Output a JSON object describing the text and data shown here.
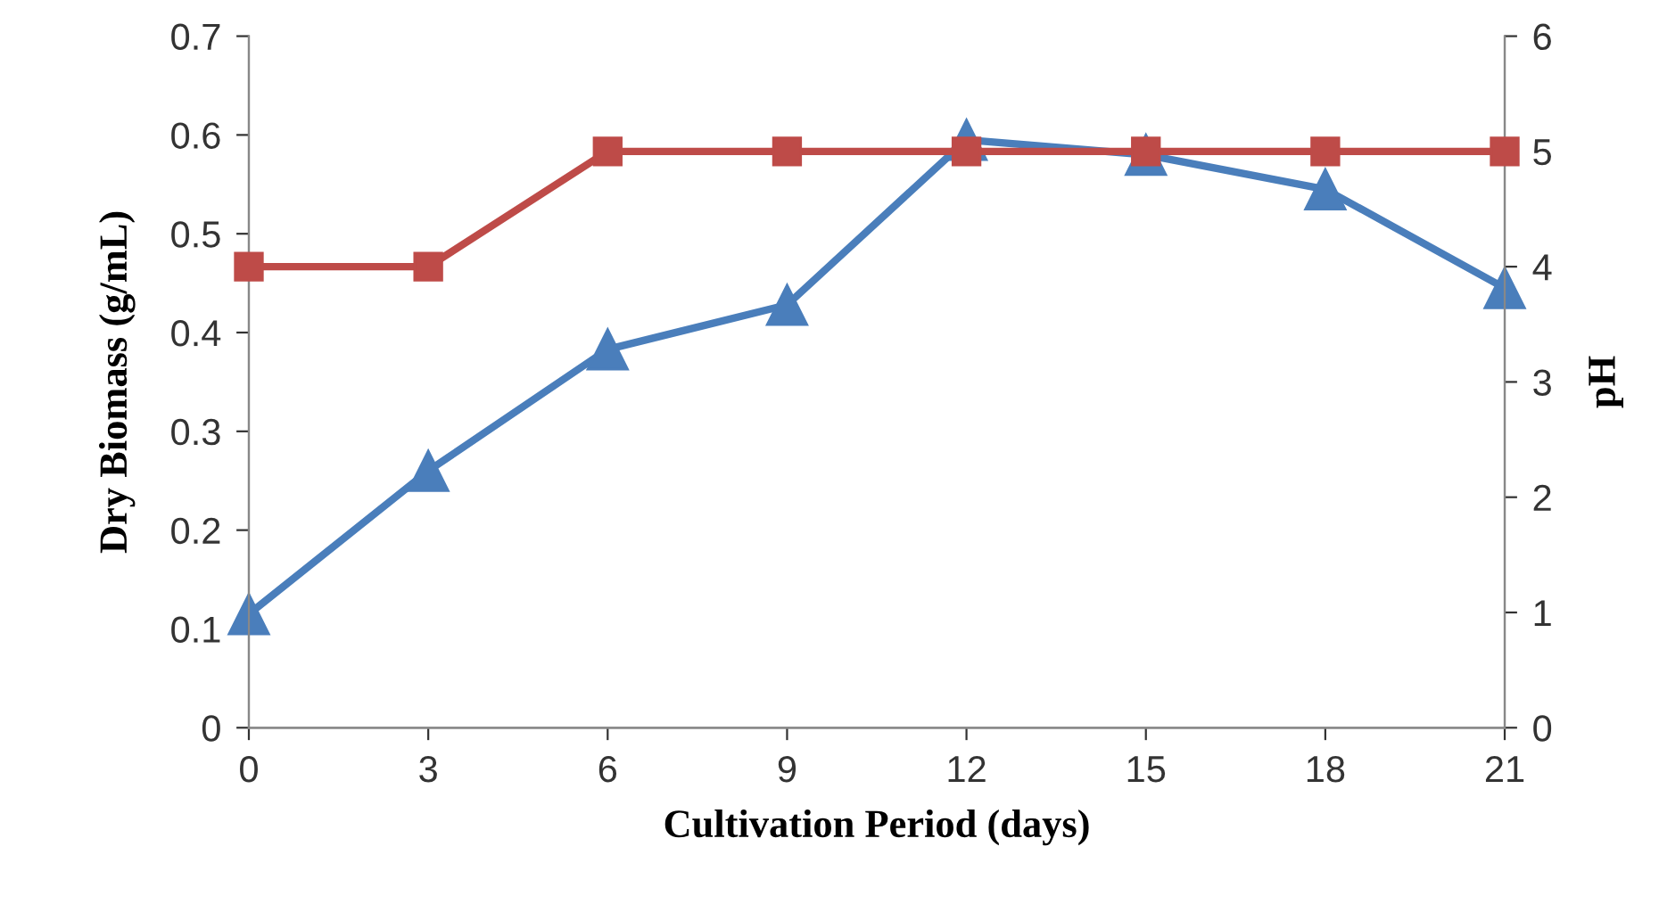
{
  "chart_data": {
    "type": "line",
    "xlabel": "Cultivation Period (days)",
    "ylabel": "Dry Biomass (g/mL)",
    "y2label": "pH",
    "x": [
      0,
      3,
      6,
      9,
      12,
      15,
      18,
      21
    ],
    "series": [
      {
        "color": "#4a7ebb",
        "marker": "triangle",
        "values": [
          0.115,
          0.26,
          0.383,
          0.428,
          0.595,
          0.58,
          0.545,
          0.445
        ]
      },
      {
        "color": "#be4b48",
        "marker": "square",
        "axis": "y2",
        "values": [
          4,
          4,
          5,
          5,
          5,
          5,
          5,
          5
        ]
      }
    ],
    "xlim": [
      0,
      21
    ],
    "xticks": [
      0,
      3,
      6,
      9,
      12,
      15,
      18,
      21
    ],
    "ylim": [
      0,
      0.7
    ],
    "yticks": [
      0,
      0.1,
      0.2,
      0.3,
      0.4,
      0.5,
      0.6,
      0.7
    ],
    "y2lim": [
      0,
      6
    ],
    "y2ticks": [
      0,
      1,
      2,
      3,
      4,
      5,
      6
    ],
    "grid": false,
    "legend": false,
    "line_style": "solid"
  }
}
